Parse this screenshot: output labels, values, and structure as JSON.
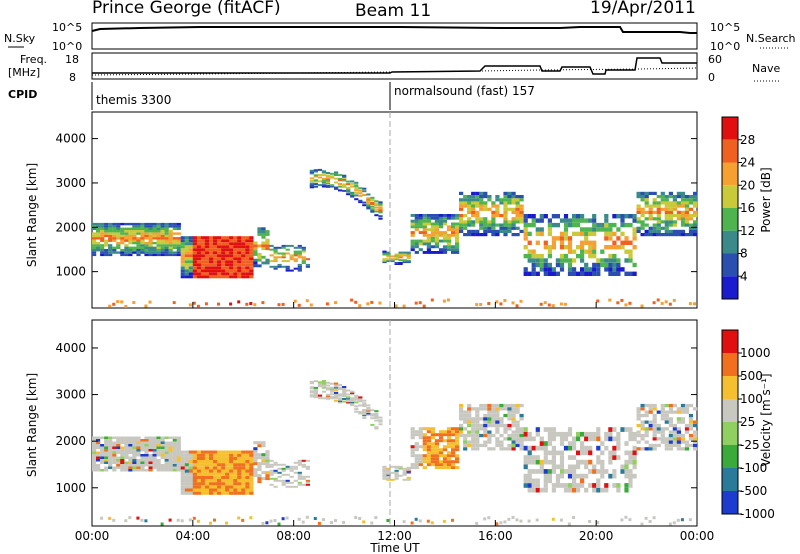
{
  "header": {
    "station": "Prince George (fitACF)",
    "beam": "Beam 11",
    "date": "19/Apr/2011"
  },
  "top_panels": {
    "nsky_label": "N.Sky",
    "nsky_ticks": [
      "10^5",
      "10^0"
    ],
    "nsearch_label": "N.Search",
    "nsearch_ticks": [
      "10^5",
      "10^0"
    ],
    "freq_label_1": "Freq.",
    "freq_label_2": "[MHz]",
    "freq_ticks": [
      "18",
      "8"
    ],
    "nave_label": "Nave",
    "nave_ticks": [
      "60",
      "0"
    ],
    "cpid_label": "CPID",
    "cpid_segments": [
      "themis 3300",
      "normalsound (fast) 157"
    ]
  },
  "chart_data": [
    {
      "type": "heatmap",
      "name": "power",
      "ylabel": "Slant Range [km]",
      "xlabel": "",
      "y_ticks": [
        "1000",
        "2000",
        "3000",
        "4000"
      ],
      "ylim": [
        180,
        4600
      ],
      "xlim": [
        0,
        24
      ],
      "colorbar_label": "Power [dB]",
      "colorbar_ticks": [
        "4",
        "8",
        "12",
        "16",
        "20",
        "24",
        "28"
      ],
      "colors": [
        "#1a1acf",
        "#2a4fb0",
        "#3a8a8a",
        "#4fb34f",
        "#c9c93a",
        "#f5a030",
        "#f06020",
        "#e01010"
      ]
    },
    {
      "type": "heatmap",
      "name": "velocity",
      "ylabel": "Slant Range [km]",
      "xlabel": "Time UT",
      "x_ticks": [
        "00:00",
        "04:00",
        "08:00",
        "12:00",
        "16:00",
        "20:00",
        "00:00"
      ],
      "y_ticks": [
        "1000",
        "2000",
        "3000",
        "4000"
      ],
      "ylim": [
        180,
        4600
      ],
      "xlim": [
        0,
        24
      ],
      "colorbar_label": "Velocity [m s⁻¹]",
      "colorbar_ticks": [
        "1000",
        "500",
        "100",
        "25",
        "-25",
        "-100",
        "-500",
        "-1000"
      ],
      "colors": [
        "#1e3bd0",
        "#2a7a9a",
        "#3aaa3a",
        "#90d060",
        "#c8c8c0",
        "#f5c030",
        "#f07020",
        "#e01010"
      ]
    }
  ]
}
